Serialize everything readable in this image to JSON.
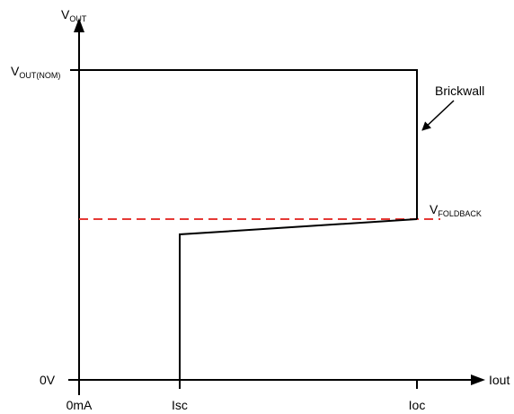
{
  "axes": {
    "y_axis_label": {
      "main": "V",
      "sub": "OUT"
    },
    "x_axis_label": "Iout",
    "y_ticks": {
      "nominal": {
        "main": "V",
        "sub": "OUT(NOM)"
      },
      "zero": "0V"
    },
    "x_ticks": {
      "origin": "0mA",
      "short_circuit": "Isc",
      "overcurrent": "Ioc"
    }
  },
  "annotations": {
    "brickwall": "Brickwall",
    "foldback": {
      "main": "V",
      "sub": "FOLDBACK"
    }
  },
  "colors": {
    "line": "#000000",
    "foldback_dashed": "#e53935"
  }
}
